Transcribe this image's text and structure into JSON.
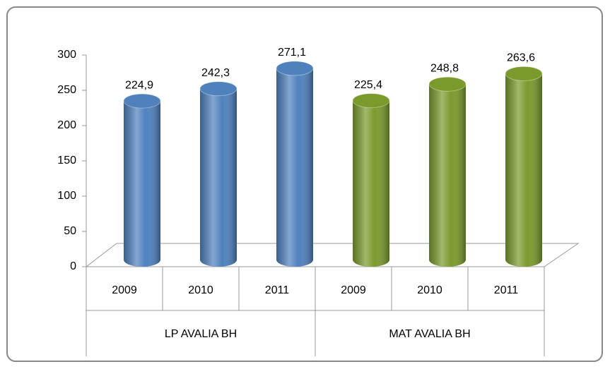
{
  "chart_data": {
    "type": "bar3d",
    "categories": [
      "2009",
      "2010",
      "2011",
      "2009",
      "2010",
      "2011"
    ],
    "groups": [
      "LP AVALIA BH",
      "MAT  AVALIA BH"
    ],
    "values": [
      224.9,
      242.3,
      271.1,
      225.4,
      248.8,
      263.6
    ],
    "value_labels": [
      "224,9",
      "242,3",
      "271,1",
      "225,4",
      "248,8",
      "263,6"
    ],
    "colors": [
      "#4f81bd",
      "#4f81bd",
      "#4f81bd",
      "#7a9a2c",
      "#7a9a2c",
      "#7a9a2c"
    ],
    "ylim": [
      0,
      300
    ],
    "yticks": [
      0,
      50,
      100,
      150,
      200,
      250,
      300
    ],
    "grid": false
  }
}
